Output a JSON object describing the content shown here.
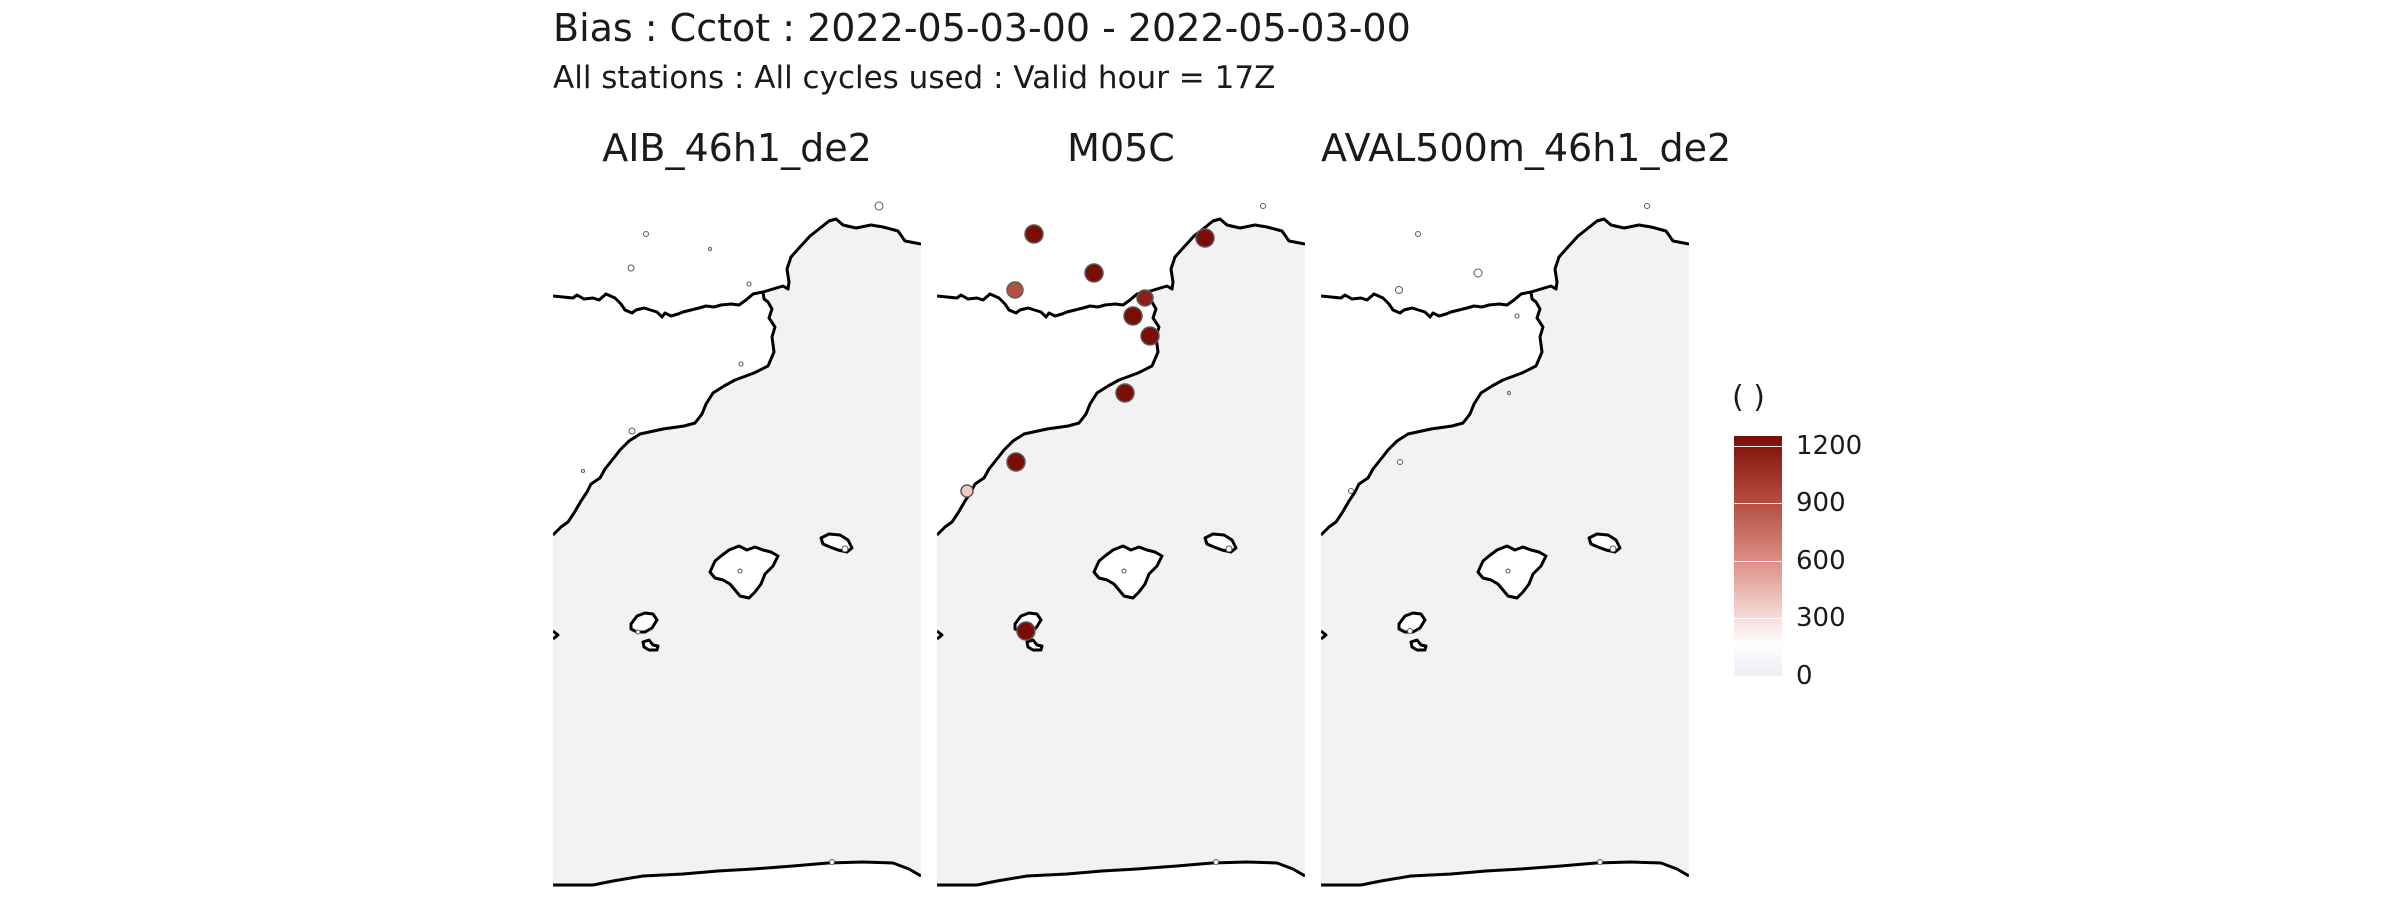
{
  "title": "Bias : Cctot : 2022-05-03-00 - 2022-05-03-00",
  "subtitle": "All stations : All cycles used : Valid hour = 17Z",
  "panels": [
    {
      "title": "AIB_46h1_de2",
      "stations": [
        {
          "x": 326,
          "y": 20,
          "v": 0,
          "r": 4
        },
        {
          "x": 93,
          "y": 48,
          "v": 0,
          "r": 2.5
        },
        {
          "x": 157,
          "y": 63,
          "v": 0,
          "r": 1.5
        },
        {
          "x": 78,
          "y": 82,
          "v": 0,
          "r": 3
        },
        {
          "x": 196,
          "y": 98,
          "v": 0,
          "r": 2
        },
        {
          "x": 188,
          "y": 178,
          "v": 0,
          "r": 2
        },
        {
          "x": 79,
          "y": 245,
          "v": 0,
          "r": 3
        },
        {
          "x": 30,
          "y": 285,
          "v": 0,
          "r": 1.5
        },
        {
          "x": 292,
          "y": 363,
          "v": 0,
          "r": 3
        },
        {
          "x": 187,
          "y": 385,
          "v": 0,
          "r": 2
        },
        {
          "x": 85,
          "y": 446,
          "v": 0,
          "r": 2
        },
        {
          "x": 279,
          "y": 676,
          "v": 0,
          "r": 2.5
        }
      ]
    },
    {
      "title": "M05C",
      "stations": [
        {
          "x": 326,
          "y": 20,
          "v": 0,
          "r": 2.5
        },
        {
          "x": 97,
          "y": 48,
          "v": 1250,
          "r": 9
        },
        {
          "x": 268,
          "y": 52,
          "v": 1250,
          "r": 9
        },
        {
          "x": 157,
          "y": 87,
          "v": 1250,
          "r": 9
        },
        {
          "x": 78,
          "y": 104,
          "v": 900,
          "r": 8
        },
        {
          "x": 208,
          "y": 112,
          "v": 1150,
          "r": 8
        },
        {
          "x": 196,
          "y": 130,
          "v": 1250,
          "r": 9
        },
        {
          "x": 213,
          "y": 150,
          "v": 1250,
          "r": 9
        },
        {
          "x": 188,
          "y": 207,
          "v": 1250,
          "r": 9
        },
        {
          "x": 79,
          "y": 276,
          "v": 1250,
          "r": 9
        },
        {
          "x": 30,
          "y": 305,
          "v": 300,
          "r": 6
        },
        {
          "x": 292,
          "y": 363,
          "v": 0,
          "r": 3
        },
        {
          "x": 187,
          "y": 385,
          "v": 0,
          "r": 2
        },
        {
          "x": 89,
          "y": 445,
          "v": 1250,
          "r": 9
        },
        {
          "x": 279,
          "y": 676,
          "v": 0,
          "r": 2.5
        }
      ]
    },
    {
      "title": "AVAL500m_46h1_de2",
      "stations": [
        {
          "x": 326,
          "y": 20,
          "v": 0,
          "r": 2.5
        },
        {
          "x": 97,
          "y": 48,
          "v": 0,
          "r": 2.5
        },
        {
          "x": 157,
          "y": 87,
          "v": 0,
          "r": 4
        },
        {
          "x": 78,
          "y": 104,
          "v": 0,
          "r": 3.5
        },
        {
          "x": 196,
          "y": 130,
          "v": 0,
          "r": 2
        },
        {
          "x": 188,
          "y": 207,
          "v": 0,
          "r": 1.5
        },
        {
          "x": 79,
          "y": 276,
          "v": 0,
          "r": 2.5
        },
        {
          "x": 30,
          "y": 305,
          "v": 0,
          "r": 2.5
        },
        {
          "x": 292,
          "y": 363,
          "v": 0,
          "r": 3
        },
        {
          "x": 187,
          "y": 385,
          "v": 0,
          "r": 2
        },
        {
          "x": 89,
          "y": 445,
          "v": 0,
          "r": 2.5
        },
        {
          "x": 279,
          "y": 676,
          "v": 0,
          "r": 2.5
        }
      ]
    }
  ],
  "legend": {
    "title": "( )",
    "min": 0,
    "max": 1250,
    "ticks": [
      {
        "value": 1200,
        "label": "1200"
      },
      {
        "value": 900,
        "label": "900"
      },
      {
        "value": 600,
        "label": "600"
      },
      {
        "value": 300,
        "label": "300"
      },
      {
        "value": 0,
        "label": "0"
      }
    ],
    "low_color": "#ffffff",
    "high_color": "#7a0e06"
  },
  "colors": {
    "sea": "#f2f2f2",
    "land": "#ffffff",
    "coast": "#000000",
    "marker_stroke": "#5a5a5a"
  }
}
